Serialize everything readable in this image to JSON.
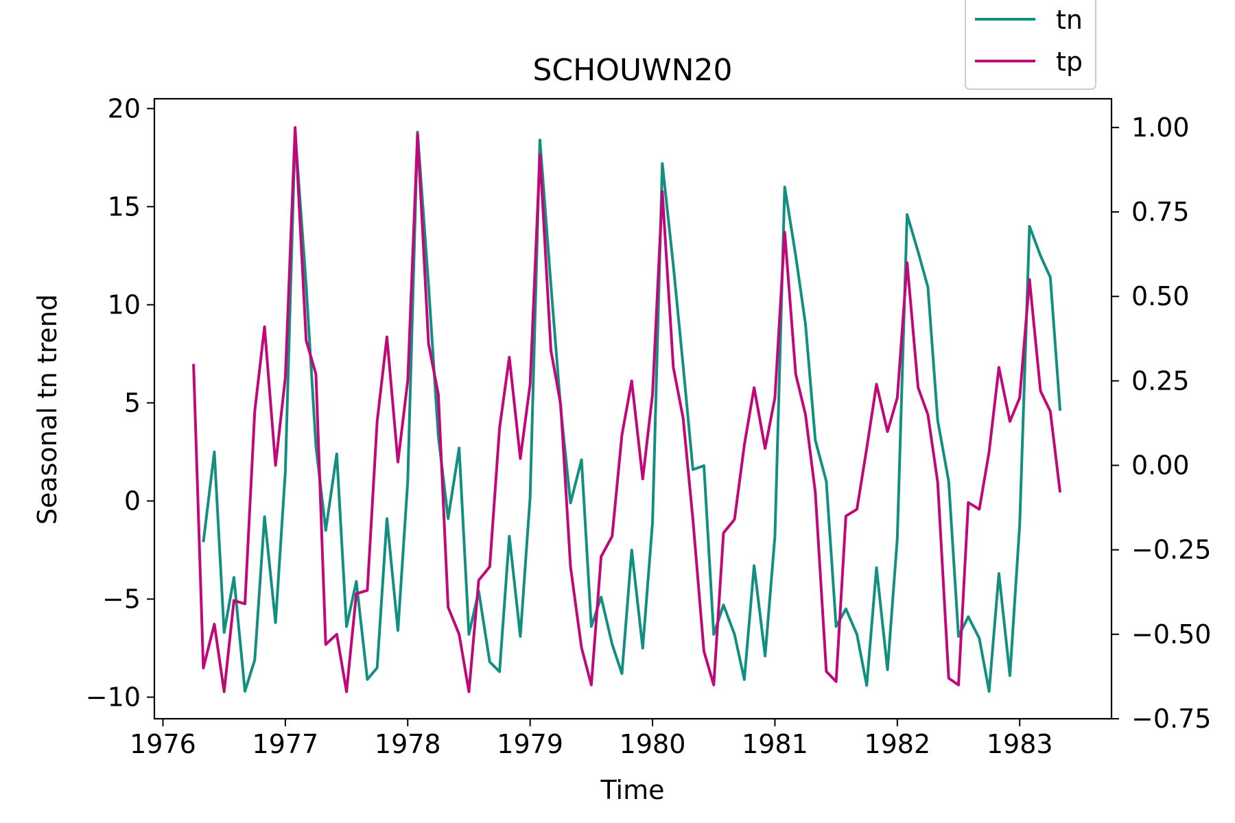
{
  "chart_data": {
    "type": "line",
    "title": "SCHOUWN20",
    "xlabel": "Time",
    "ylabel_left": "Seasonal tn trend",
    "ylabel_right": "",
    "xlim": [
      1975.93,
      1983.75
    ],
    "ylim_left": [
      -11.1,
      20.5
    ],
    "ylim_right": [
      -0.75,
      1.085
    ],
    "xticks": [
      1976,
      1977,
      1978,
      1979,
      1980,
      1981,
      1982,
      1983
    ],
    "yticks_left": [
      -10,
      -5,
      0,
      5,
      10,
      15,
      20
    ],
    "yticks_left_labels": [
      "−10",
      "−5",
      "0",
      "5",
      "10",
      "15",
      "20"
    ],
    "yticks_right": [
      -0.75,
      -0.5,
      -0.25,
      0.0,
      0.25,
      0.5,
      0.75,
      1.0
    ],
    "yticks_right_labels": [
      "−0.75",
      "−0.50",
      "−0.25",
      "0.00",
      "0.25",
      "0.50",
      "0.75",
      "1.00"
    ],
    "legend_position": "above top-right",
    "grid": false,
    "colors": {
      "tn": "#138f82",
      "tp": "#c0087a"
    },
    "series": [
      {
        "name": "tn",
        "axis": "left",
        "x": [
          1976.33,
          1976.42,
          1976.5,
          1976.58,
          1976.67,
          1976.75,
          1976.83,
          1976.92,
          1977.0,
          1977.08,
          1977.17,
          1977.25,
          1977.33,
          1977.42,
          1977.5,
          1977.58,
          1977.67,
          1977.75,
          1977.83,
          1977.92,
          1978.0,
          1978.08,
          1978.17,
          1978.25,
          1978.33,
          1978.42,
          1978.5,
          1978.58,
          1978.67,
          1978.75,
          1978.83,
          1978.92,
          1979.0,
          1979.08,
          1979.17,
          1979.25,
          1979.33,
          1979.42,
          1979.5,
          1979.58,
          1979.67,
          1979.75,
          1979.83,
          1979.92,
          1980.0,
          1980.08,
          1980.17,
          1980.25,
          1980.33,
          1980.42,
          1980.5,
          1980.58,
          1980.67,
          1980.75,
          1980.83,
          1980.92,
          1981.0,
          1981.08,
          1981.17,
          1981.25,
          1981.33,
          1981.42,
          1981.5,
          1981.58,
          1981.67,
          1981.75,
          1981.83,
          1981.92,
          1982.0,
          1982.08,
          1982.17,
          1982.25,
          1982.33,
          1982.42,
          1982.5,
          1982.58,
          1982.67,
          1982.75,
          1982.83,
          1982.92,
          1983.0,
          1983.08,
          1983.17,
          1983.25,
          1983.33
        ],
        "values": [
          -2.1,
          2.5,
          -6.7,
          -3.9,
          -9.7,
          -8.1,
          -0.8,
          -6.2,
          1.5,
          18.8,
          11.0,
          2.8,
          -1.5,
          2.4,
          -6.4,
          -4.1,
          -9.1,
          -8.5,
          -0.9,
          -6.6,
          1.0,
          18.8,
          11.0,
          3.3,
          -0.9,
          2.7,
          -6.8,
          -4.6,
          -8.2,
          -8.7,
          -1.8,
          -6.9,
          0.2,
          18.4,
          11.0,
          4.7,
          -0.1,
          2.1,
          -6.4,
          -4.9,
          -7.3,
          -8.8,
          -2.5,
          -7.5,
          -1.1,
          17.2,
          12.0,
          6.9,
          1.6,
          1.8,
          -6.8,
          -5.3,
          -6.8,
          -9.1,
          -3.3,
          -7.9,
          -1.8,
          16.0,
          12.5,
          9.0,
          3.1,
          1.0,
          -6.4,
          -5.5,
          -6.8,
          -9.4,
          -3.4,
          -8.6,
          -1.9,
          14.6,
          12.7,
          10.9,
          4.1,
          1.0,
          -6.9,
          -5.9,
          -7.0,
          -9.7,
          -3.7,
          -8.9,
          -1.2,
          14.0,
          12.5,
          11.4,
          4.6
        ]
      },
      {
        "name": "tp",
        "axis": "right",
        "x": [
          1976.25,
          1976.33,
          1976.42,
          1976.5,
          1976.58,
          1976.67,
          1976.75,
          1976.83,
          1976.92,
          1977.0,
          1977.08,
          1977.17,
          1977.25,
          1977.33,
          1977.42,
          1977.5,
          1977.58,
          1977.67,
          1977.75,
          1977.83,
          1977.92,
          1978.0,
          1978.08,
          1978.17,
          1978.25,
          1978.33,
          1978.42,
          1978.5,
          1978.58,
          1978.67,
          1978.75,
          1978.83,
          1978.92,
          1979.0,
          1979.08,
          1979.17,
          1979.25,
          1979.33,
          1979.42,
          1979.5,
          1979.58,
          1979.67,
          1979.75,
          1979.83,
          1979.92,
          1980.0,
          1980.08,
          1980.17,
          1980.25,
          1980.33,
          1980.42,
          1980.5,
          1980.58,
          1980.67,
          1980.75,
          1980.83,
          1980.92,
          1981.0,
          1981.08,
          1981.17,
          1981.25,
          1981.33,
          1981.42,
          1981.5,
          1981.58,
          1981.67,
          1981.75,
          1981.83,
          1981.92,
          1982.0,
          1982.08,
          1982.17,
          1982.25,
          1982.33,
          1982.42,
          1982.5,
          1982.58,
          1982.67,
          1982.75,
          1982.83,
          1982.92,
          1983.0,
          1983.08,
          1983.17,
          1983.25,
          1983.33
        ],
        "values": [
          0.3,
          -0.6,
          -0.47,
          -0.67,
          -0.4,
          -0.41,
          0.16,
          0.41,
          0.0,
          0.26,
          1.0,
          0.37,
          0.27,
          -0.53,
          -0.5,
          -0.67,
          -0.38,
          -0.37,
          0.13,
          0.38,
          0.01,
          0.25,
          0.98,
          0.36,
          0.21,
          -0.42,
          -0.5,
          -0.67,
          -0.34,
          -0.3,
          0.11,
          0.32,
          0.02,
          0.24,
          0.92,
          0.34,
          0.18,
          -0.3,
          -0.54,
          -0.65,
          -0.27,
          -0.21,
          0.09,
          0.25,
          -0.04,
          0.21,
          0.81,
          0.29,
          0.14,
          -0.16,
          -0.55,
          -0.65,
          -0.2,
          -0.16,
          0.06,
          0.23,
          0.05,
          0.2,
          0.69,
          0.27,
          0.15,
          -0.08,
          -0.61,
          -0.64,
          -0.15,
          -0.13,
          0.05,
          0.24,
          0.1,
          0.2,
          0.6,
          0.23,
          0.15,
          -0.05,
          -0.63,
          -0.65,
          -0.11,
          -0.13,
          0.04,
          0.29,
          0.13,
          0.2,
          0.55,
          0.22,
          0.16,
          -0.08
        ]
      }
    ]
  }
}
